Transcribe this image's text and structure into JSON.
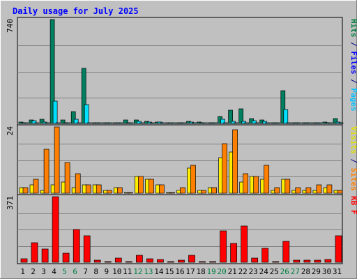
{
  "chart_data": {
    "type": "bar",
    "title": "Daily usage for July 2025",
    "days": [
      "1",
      "2",
      "3",
      "4",
      "5",
      "6",
      "7",
      "8",
      "9",
      "10",
      "11",
      "12",
      "13",
      "14",
      "15",
      "16",
      "17",
      "18",
      "19",
      "20",
      "21",
      "22",
      "23",
      "24",
      "25",
      "26",
      "27",
      "28",
      "29",
      "30",
      "31"
    ],
    "weekend_days": [
      5,
      6,
      12,
      13,
      19,
      20,
      26,
      27
    ],
    "panels": [
      {
        "name": "top",
        "max_label": "740",
        "ymax": 740,
        "axis_label": [
          {
            "text": "Hits",
            "color": "#008040"
          },
          {
            "text": " / ",
            "color": "#000080"
          },
          {
            "text": "Files",
            "color": "#0000ff"
          },
          {
            "text": " / ",
            "color": "#000080"
          },
          {
            "text": "Pages",
            "color": "#00c0ff"
          }
        ],
        "series": [
          {
            "name": "Hits",
            "color": "#008060",
            "values": [
              10,
              25,
              30,
              740,
              25,
              85,
              390,
              5,
              5,
              5,
              25,
              25,
              15,
              10,
              5,
              5,
              15,
              10,
              5,
              50,
              95,
              105,
              35,
              25,
              5,
              235,
              5,
              5,
              5,
              10,
              35
            ]
          },
          {
            "name": "Files",
            "color": "#00e0ff",
            "values": [
              5,
              20,
              10,
              160,
              5,
              30,
              135,
              5,
              5,
              5,
              5,
              15,
              10,
              10,
              5,
              5,
              10,
              5,
              5,
              30,
              15,
              15,
              20,
              15,
              5,
              100,
              5,
              5,
              5,
              5,
              10
            ]
          },
          {
            "name": "Pages",
            "color": "#00e0ff",
            "values": [
              3,
              3,
              3,
              5,
              3,
              3,
              5,
              3,
              3,
              3,
              3,
              3,
              3,
              3,
              3,
              3,
              3,
              3,
              3,
              3,
              3,
              3,
              3,
              3,
              3,
              5,
              3,
              3,
              3,
              3,
              3
            ]
          }
        ]
      },
      {
        "name": "middle",
        "max_label": "24",
        "ymax": 24,
        "axis_label": [
          {
            "text": "Visits",
            "color": "#e0e000"
          },
          {
            "text": " / ",
            "color": "#000080"
          },
          {
            "text": "Sites",
            "color": "#ff8000"
          }
        ],
        "series": [
          {
            "name": "Visits",
            "color": "#ffee00",
            "values": [
              2,
              3,
              1,
              3,
              4,
              2,
              3,
              3,
              1,
              2,
              0,
              6,
              5,
              3,
              0,
              1,
              9,
              1,
              2,
              13,
              15,
              4,
              6,
              5,
              1,
              5,
              1,
              1,
              1,
              2,
              1
            ]
          },
          {
            "name": "Sites",
            "color": "#ff8000",
            "values": [
              2,
              5,
              16,
              24,
              11,
              7,
              3,
              3,
              1,
              2,
              0,
              6,
              5,
              3,
              0,
              2,
              10,
              1,
              2,
              18,
              23,
              7,
              6,
              10,
              2,
              5,
              2,
              2,
              3,
              3,
              1
            ]
          }
        ]
      },
      {
        "name": "bottom",
        "max_label": "371",
        "ymax": 371,
        "axis_label": [
          {
            "text": "KB F",
            "color": "#ff0000"
          }
        ],
        "series": [
          {
            "name": "KB F",
            "color": "#ff0000",
            "values": [
              20,
              110,
              75,
              371,
              50,
              185,
              150,
              10,
              5,
              25,
              0,
              40,
              20,
              15,
              0,
              10,
              40,
              5,
              5,
              178,
              105,
              205,
              25,
              78,
              5,
              120,
              10,
              10,
              10,
              15,
              150
            ]
          }
        ]
      }
    ]
  }
}
